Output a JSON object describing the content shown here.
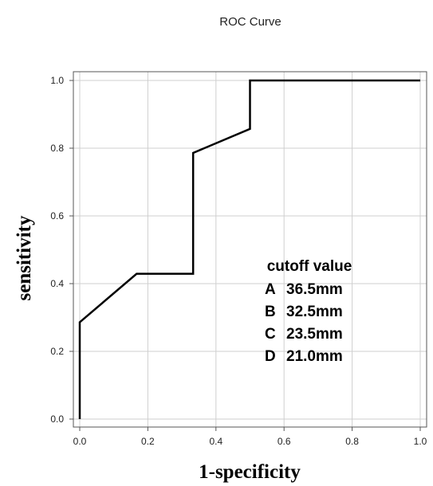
{
  "chart_data": {
    "type": "line",
    "title": "ROC Curve",
    "xlabel": "1-specificity",
    "ylabel": "sensitivity",
    "xlim": [
      0,
      1
    ],
    "ylim": [
      0,
      1
    ],
    "x_ticks": [
      "0.0",
      "0.2",
      "0.4",
      "0.6",
      "0.8",
      "1.0"
    ],
    "y_ticks": [
      "0.0",
      "0.2",
      "0.4",
      "0.6",
      "0.8",
      "1.0"
    ],
    "grid": true,
    "series": [
      {
        "x": [
          0,
          0,
          0.167,
          0.333,
          0.333,
          0.5,
          0.5,
          1.0
        ],
        "y": [
          0,
          0.286,
          0.429,
          0.429,
          0.786,
          0.857,
          1.0,
          1.0
        ],
        "color": "#000000"
      }
    ],
    "annotation": {
      "title": "cutoff value",
      "items": [
        {
          "label": "A",
          "value": "36.5mm"
        },
        {
          "label": "B",
          "value": "32.5mm"
        },
        {
          "label": "C",
          "value": "23.5mm"
        },
        {
          "label": "D",
          "value": "21.0mm"
        }
      ]
    }
  }
}
